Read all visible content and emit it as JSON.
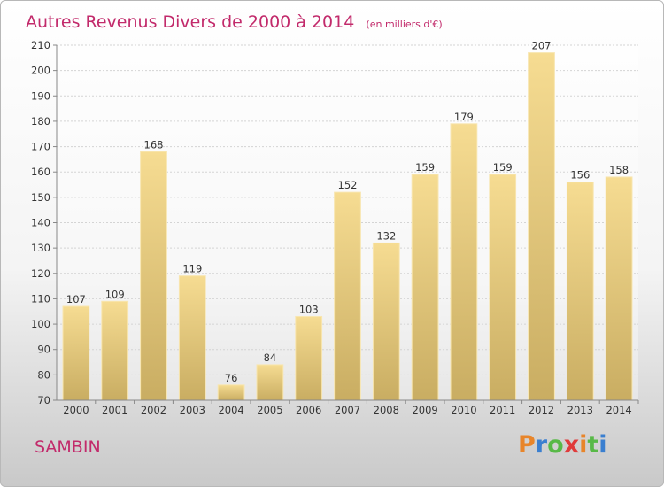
{
  "chart_data": {
    "type": "bar",
    "title": "Autres Revenus Divers de 2000 à 2014",
    "subtitle": "(en milliers d'€)",
    "categories": [
      "2000",
      "2001",
      "2002",
      "2003",
      "2004",
      "2005",
      "2006",
      "2007",
      "2008",
      "2009",
      "2010",
      "2011",
      "2012",
      "2013",
      "2014"
    ],
    "values": [
      107,
      109,
      168,
      119,
      76,
      84,
      103,
      152,
      132,
      159,
      179,
      159,
      207,
      156,
      158
    ],
    "ylim": [
      70,
      210
    ],
    "yticks": [
      70,
      80,
      90,
      100,
      110,
      120,
      130,
      140,
      150,
      160,
      170,
      180,
      190,
      200,
      210
    ],
    "grid": true,
    "bar_color": "#f2d98e"
  },
  "commune": "SAMBIN",
  "logo": {
    "text": "Proxiti",
    "letter_colors": [
      "#e8852a",
      "#3a7fd0",
      "#58b947",
      "#e03b3b",
      "#e8852a",
      "#58b947",
      "#3a7fd0"
    ]
  }
}
